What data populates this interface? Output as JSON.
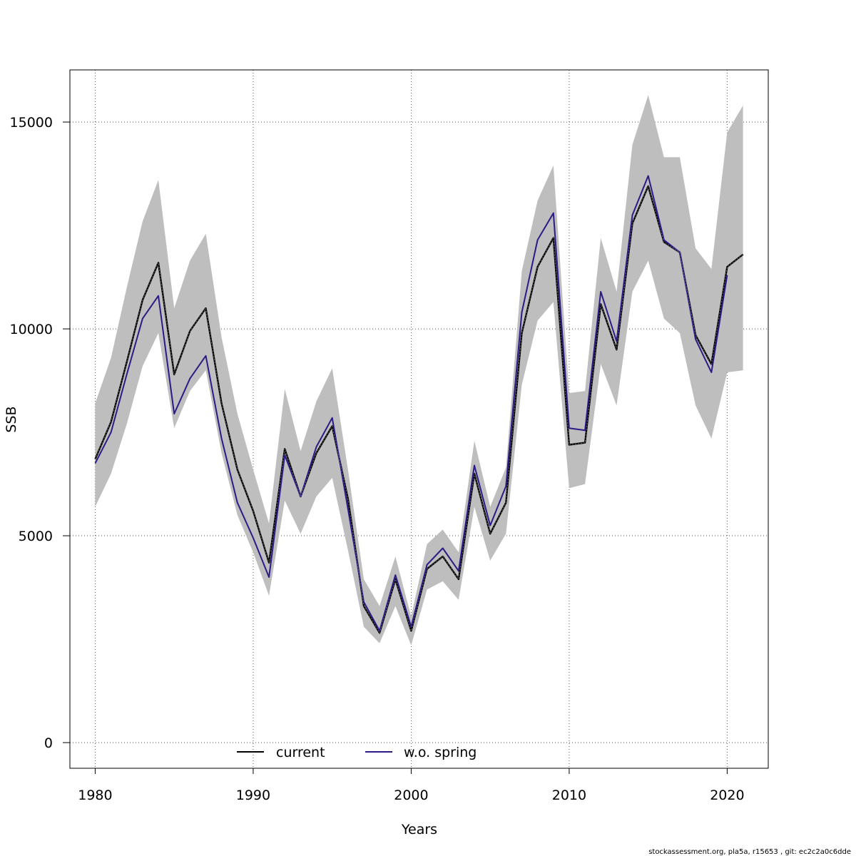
{
  "chart_data": {
    "type": "line",
    "xlabel": "Years",
    "ylabel": "SSB",
    "xlim": [
      1978.4,
      2022.6
    ],
    "ylim": [
      -620,
      16260
    ],
    "xticks": [
      1980,
      1990,
      2000,
      2010,
      2020
    ],
    "yticks": [
      0,
      5000,
      10000,
      15000
    ],
    "grid": true,
    "legend": "bottom-center",
    "x": [
      1980,
      1981,
      1982,
      1983,
      1984,
      1985,
      1986,
      1987,
      1988,
      1989,
      1990,
      1991,
      1992,
      1993,
      1994,
      1995,
      1996,
      1997,
      1998,
      1999,
      2000,
      2001,
      2002,
      2003,
      2004,
      2005,
      2006,
      2007,
      2008,
      2009,
      2010,
      2011,
      2012,
      2013,
      2014,
      2015,
      2016,
      2017,
      2018,
      2019,
      2020,
      2021
    ],
    "band": {
      "color": "#bebebe",
      "upper": [
        8200,
        9300,
        11000,
        12600,
        13600,
        10500,
        11650,
        12300,
        9800,
        7950,
        6600,
        5300,
        8550,
        7050,
        8250,
        9050,
        6600,
        3950,
        3300,
        4500,
        3050,
        4800,
        5150,
        4600,
        7300,
        5700,
        6650,
        11400,
        13100,
        13950,
        8450,
        8500,
        12200,
        10900,
        14450,
        15650,
        14150,
        14150,
        11950,
        11450,
        14750,
        15400
      ],
      "lower": [
        5700,
        6500,
        7700,
        9100,
        9900,
        7600,
        8500,
        9000,
        7000,
        5500,
        4600,
        3550,
        5850,
        5050,
        5950,
        6400,
        4650,
        2800,
        2400,
        3300,
        2350,
        3700,
        3900,
        3450,
        5700,
        4400,
        5050,
        8650,
        10200,
        10650,
        6150,
        6250,
        9150,
        8150,
        10900,
        11650,
        10250,
        9900,
        8150,
        7350,
        8950,
        9000
      ]
    },
    "series": [
      {
        "name": "current",
        "color": "#000000",
        "values": [
          6850,
          7750,
          9200,
          10700,
          11600,
          8900,
          9950,
          10500,
          8200,
          6600,
          5600,
          4350,
          7100,
          5950,
          7000,
          7650,
          5900,
          3300,
          2650,
          3950,
          2700,
          4200,
          4500,
          3950,
          6500,
          5050,
          5800,
          9900,
          11500,
          12200,
          7200,
          7250,
          10600,
          9500,
          12550,
          13450,
          12100,
          11850,
          9850,
          9150,
          11500,
          11800
        ]
      },
      {
        "name": "w.o. spring",
        "color": "#2e1a87",
        "values": [
          6750,
          7500,
          8900,
          10250,
          10800,
          7950,
          8800,
          9350,
          7350,
          5800,
          4950,
          4000,
          6950,
          5950,
          7150,
          7850,
          5650,
          3400,
          2700,
          4050,
          2800,
          4300,
          4700,
          4150,
          6700,
          5250,
          6200,
          10400,
          12150,
          12800,
          7600,
          7550,
          10900,
          9700,
          12750,
          13700,
          12150,
          11850,
          9750,
          8950,
          11300,
          null
        ]
      }
    ],
    "footer": "stockassessment.org, pla5a, r15653 , git: ec2c2a0c6dde"
  }
}
